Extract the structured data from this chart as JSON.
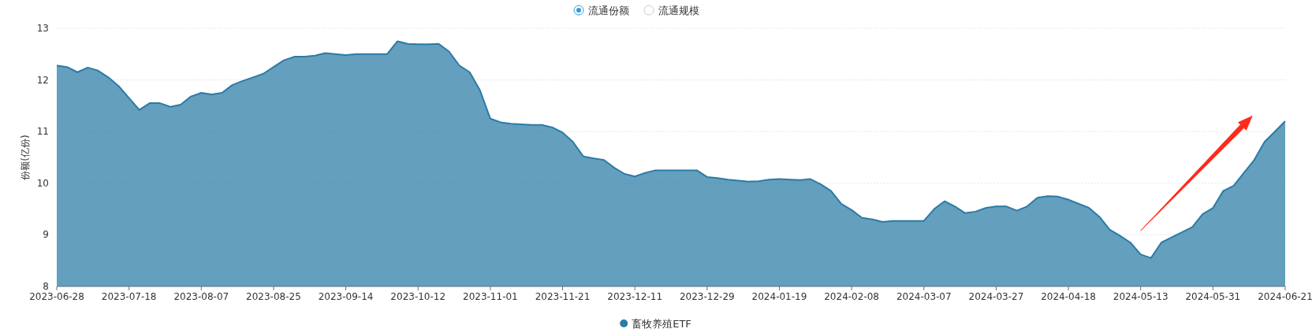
{
  "chart_data": {
    "type": "area",
    "ylabel": "份额(亿份)",
    "annotations": [
      "流通份额",
      "流通规模"
    ],
    "categories": [
      "2023-06-28",
      null,
      null,
      null,
      null,
      null,
      null,
      "2023-07-18",
      null,
      null,
      null,
      null,
      null,
      null,
      "2023-08-07",
      null,
      null,
      null,
      null,
      null,
      null,
      "2023-08-25",
      null,
      null,
      null,
      null,
      null,
      null,
      "2023-09-14",
      null,
      null,
      null,
      null,
      null,
      null,
      "2023-10-12",
      null,
      null,
      null,
      null,
      null,
      null,
      "2023-11-01",
      null,
      null,
      null,
      null,
      null,
      null,
      "2023-11-21",
      null,
      null,
      null,
      null,
      null,
      null,
      "2023-12-11",
      null,
      null,
      null,
      null,
      null,
      null,
      "2023-12-29",
      null,
      null,
      null,
      null,
      null,
      null,
      "2024-01-19",
      null,
      null,
      null,
      null,
      null,
      null,
      "2024-02-08",
      null,
      null,
      null,
      null,
      null,
      null,
      "2024-03-07",
      null,
      null,
      null,
      null,
      null,
      null,
      "2024-03-27",
      null,
      null,
      null,
      null,
      null,
      null,
      "2024-04-18",
      null,
      null,
      null,
      null,
      null,
      null,
      "2024-05-13",
      null,
      null,
      null,
      null,
      null,
      null,
      "2024-05-31",
      null,
      null,
      null,
      null,
      null,
      null,
      "2024-06-21"
    ],
    "series": [
      {
        "name": "畜牧养殖ETF",
        "color": "#2b7ba6",
        "values": [
          12.28,
          12.25,
          12.15,
          12.24,
          12.18,
          12.05,
          11.88,
          11.65,
          11.42,
          11.55,
          11.55,
          11.48,
          11.52,
          11.68,
          11.75,
          11.72,
          11.75,
          11.9,
          11.98,
          12.05,
          12.12,
          12.25,
          12.38,
          12.45,
          12.45,
          12.47,
          12.52,
          12.5,
          12.48,
          12.5,
          12.5,
          12.5,
          12.5,
          12.75,
          12.7,
          12.69,
          12.69,
          12.7,
          12.55,
          12.28,
          12.15,
          11.8,
          11.25,
          11.18,
          11.15,
          11.14,
          11.13,
          11.13,
          11.08,
          10.98,
          10.8,
          10.52,
          10.48,
          10.45,
          10.3,
          10.18,
          10.13,
          10.2,
          10.25,
          10.25,
          10.25,
          10.25,
          10.25,
          10.12,
          10.1,
          10.07,
          10.05,
          10.03,
          10.04,
          10.07,
          10.08,
          10.07,
          10.06,
          10.08,
          9.98,
          9.85,
          9.6,
          9.48,
          9.33,
          9.3,
          9.25,
          9.27,
          9.27,
          9.27,
          9.27,
          9.5,
          9.65,
          9.55,
          9.42,
          9.45,
          9.52,
          9.55,
          9.55,
          9.47,
          9.55,
          9.72,
          9.75,
          9.74,
          9.68,
          9.6,
          9.52,
          9.35,
          9.1,
          8.98,
          8.85,
          8.62,
          8.55,
          8.85,
          8.95,
          9.05,
          9.15,
          9.4,
          9.52,
          9.85,
          9.95,
          10.2,
          10.45,
          10.8,
          11.0,
          11.2
        ]
      }
    ],
    "ylim": [
      8,
      13
    ],
    "yticks": [
      8,
      9,
      10,
      11,
      12,
      13
    ],
    "grid": "y",
    "legend": "bottom",
    "marker": "none"
  }
}
